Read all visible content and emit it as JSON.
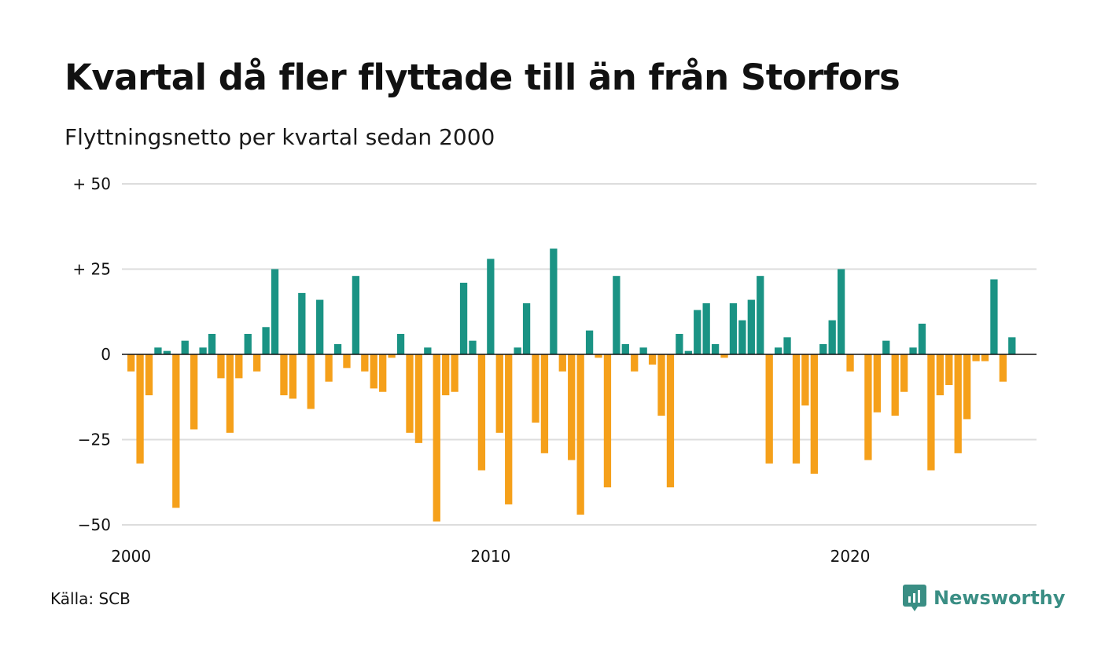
{
  "title": "Kvartal då fler flyttade till än från Storfors",
  "subtitle": "Flyttningsnetto per kvartal sedan 2000",
  "source": "Källa: SCB",
  "brand": {
    "name": "Newsworthy",
    "icon": "newsworthy-logo-icon",
    "color": "#3a8e84"
  },
  "chart_data": {
    "type": "bar",
    "title": "Kvartal då fler flyttade till än från Storfors",
    "subtitle": "Flyttningsnetto per kvartal sedan 2000",
    "xlabel": "",
    "ylabel": "",
    "start": "2000 Q1",
    "frequency": "quarterly",
    "x_ticks": [
      "2000",
      "2010",
      "2020"
    ],
    "y_ticks": [
      {
        "value": 50,
        "label": "+ 50"
      },
      {
        "value": 25,
        "label": "+ 25"
      },
      {
        "value": 0,
        "label": "0"
      },
      {
        "value": -25,
        "label": "−25"
      },
      {
        "value": -50,
        "label": "−50"
      }
    ],
    "ylim": [
      -50,
      50
    ],
    "grid": true,
    "colors": {
      "positive": "#1a9384",
      "negative": "#f5a01a",
      "grid": "#dddddd",
      "zero": "#111111"
    },
    "values": [
      -5,
      -32,
      -12,
      2,
      1,
      -45,
      4,
      -22,
      2,
      6,
      -7,
      -23,
      -7,
      6,
      -5,
      8,
      25,
      -12,
      -13,
      18,
      -16,
      16,
      -8,
      3,
      -4,
      23,
      -5,
      -10,
      -11,
      -1,
      6,
      -23,
      -26,
      2,
      -49,
      -12,
      -11,
      21,
      4,
      -34,
      28,
      -23,
      -44,
      2,
      15,
      -20,
      -29,
      31,
      -5,
      -31,
      -47,
      7,
      -1,
      -39,
      23,
      3,
      -5,
      2,
      -3,
      -18,
      -39,
      6,
      1,
      13,
      15,
      3,
      -1,
      15,
      10,
      16,
      23,
      -32,
      2,
      5,
      -32,
      -15,
      -35,
      3,
      10,
      25,
      -5,
      0,
      -31,
      -17,
      4,
      -18,
      -11,
      2,
      9,
      -34,
      -12,
      -9,
      -29,
      -19,
      -2,
      -2,
      22,
      -8,
      5
    ]
  }
}
